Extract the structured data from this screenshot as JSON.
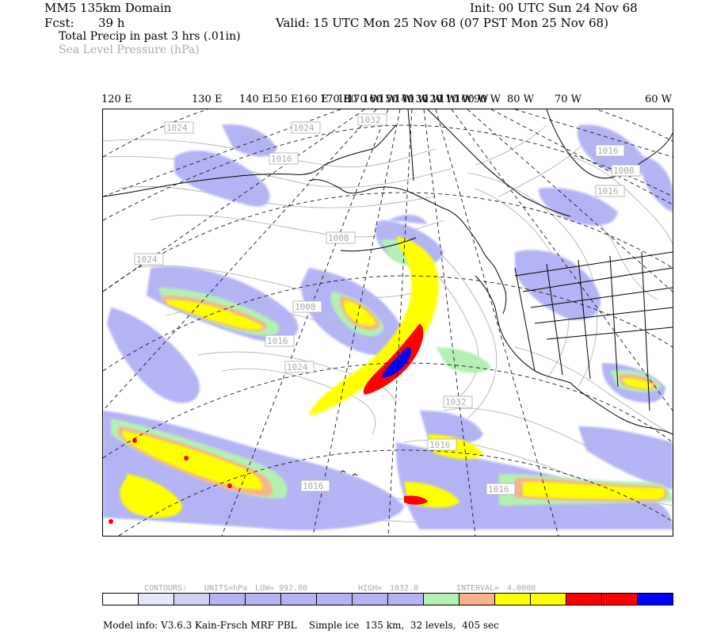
{
  "header": {
    "domain_title": "MM5 135km Domain",
    "init": "Init: 00 UTC Sun 24 Nov 68",
    "fcst_label": "Fcst:",
    "fcst_value": "39 h",
    "valid": "Valid: 15 UTC Mon 25 Nov 68 (07 PST Mon 25 Nov 68)",
    "field1": "Total Precip in past 3 hrs (.01in)",
    "field2": "Sea Level Pressure (hPa)"
  },
  "longitude_labels": [
    "120 E",
    "130 E",
    "140 E",
    "150 E",
    "160 E",
    "170 E",
    "180",
    "170 W",
    "160 W",
    "150 W",
    "140 W",
    "130 W",
    "120 W",
    "110 W",
    "100 W",
    "90 W",
    "80 W",
    "70 W",
    "60 W"
  ],
  "isobar_labels": [
    "1024",
    "1024",
    "1032",
    "1016",
    "1016",
    "1008",
    "1008",
    "1024",
    "1008",
    "1016",
    "1016",
    "1024",
    "1032",
    "1016",
    "1016",
    "1016",
    "1008",
    "1016"
  ],
  "contour_info": {
    "contours": "CONTOURS:",
    "units": "UNITS=hPa",
    "low": "LOW=",
    "low_value": "992.00",
    "high": "HIGH=",
    "high_value": "1032.0",
    "interval": "INTERVAL=",
    "interval_value": "4.0000"
  },
  "colorbar": {
    "colors": [
      "#ffffff",
      "#e6e6fa",
      "#d2d2f7",
      "#b4b4f5",
      "#b4b4f5",
      "#b4b4f5",
      "#b4b4f5",
      "#b4b4f5",
      "#b4b4f5",
      "#b4f0b4",
      "#f5b48c",
      "#ffff00",
      "#ffff00",
      "#ff0000",
      "#ff0000",
      "#0000ff"
    ]
  },
  "colors": {
    "precip_light": "#b4b4f5",
    "precip_vlight": "#dcdcfa",
    "precip_green": "#b4f0b4",
    "precip_orange": "#f5b48c",
    "precip_yellow": "#ffff00",
    "precip_red": "#ff0000",
    "precip_blue": "#0000ff",
    "isobar": "#aaaaaa"
  },
  "footer": {
    "model_info": "Model info: V3.6.3 Kain-Frsch MRF PBL    Simple ice  135 km,  32 levels,  405 sec"
  }
}
